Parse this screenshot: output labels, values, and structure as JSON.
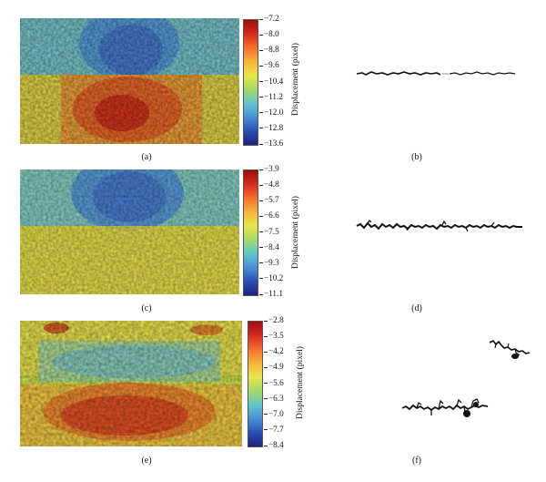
{
  "figure": {
    "colorbar_label": "Displacement (pixel)",
    "panels": [
      {
        "id": "a",
        "caption": "(a)",
        "ticks": [
          "−7.2",
          "−8.0",
          "−8.8",
          "−9.6",
          "−10.4",
          "−11.2",
          "−12.0",
          "−12.8",
          "−13.6"
        ],
        "colormap": [
          "#9b0d0d",
          "#d62a20",
          "#f3702b",
          "#f7b33c",
          "#e8e64b",
          "#a6d86a",
          "#62c5c9",
          "#4a8fd6",
          "#2b4fb5",
          "#1e237a"
        ]
      },
      {
        "id": "c",
        "caption": "(c)",
        "ticks": [
          "−3.9",
          "−4.8",
          "−5.7",
          "−6.6",
          "−7.5",
          "−8.4",
          "−9.3",
          "−10.2",
          "−11.1"
        ],
        "colormap": [
          "#9b0d0d",
          "#d62a20",
          "#f3702b",
          "#f7b33c",
          "#e8e64b",
          "#a6d86a",
          "#62c5c9",
          "#4a8fd6",
          "#2b4fb5",
          "#1e237a"
        ]
      },
      {
        "id": "e",
        "caption": "(e)",
        "ticks": [
          "−2.8",
          "−3.5",
          "−4.2",
          "−4.9",
          "−5.6",
          "−6.3",
          "−7.0",
          "−7.7",
          "−8.4"
        ],
        "colormap": [
          "#9b0d0d",
          "#d62a20",
          "#f3702b",
          "#f7b33c",
          "#e8e64b",
          "#a6d86a",
          "#62c5c9",
          "#4a8fd6",
          "#2b4fb5",
          "#1e237a"
        ]
      }
    ],
    "crack_panels": [
      {
        "id": "b",
        "caption": "(b)"
      },
      {
        "id": "d",
        "caption": "(d)"
      },
      {
        "id": "f",
        "caption": "(f)"
      }
    ]
  }
}
